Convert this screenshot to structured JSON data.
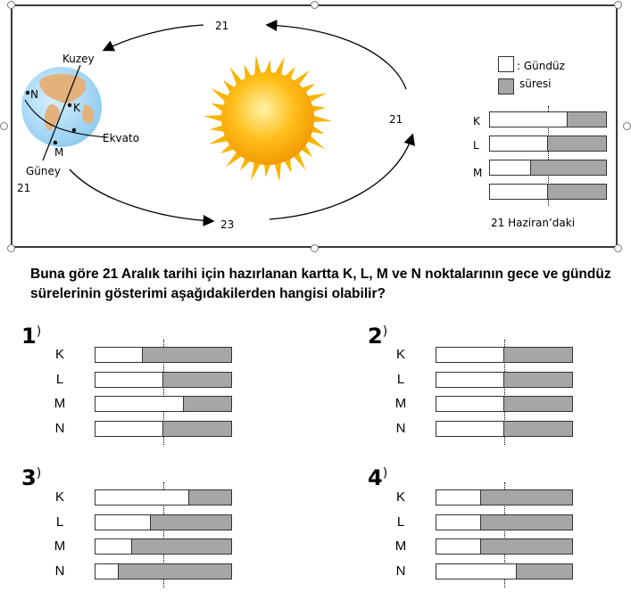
{
  "diagram": {
    "orbit_labels": {
      "top": "21",
      "right": "21",
      "bottom": "23",
      "left": "21"
    },
    "earth": {
      "north_label": "Kuzey",
      "south_label": "Güney",
      "equator_label": "Ekvato",
      "points": [
        "N",
        "K",
        "M"
      ]
    },
    "legend": {
      "day_label_line1": ": Gündüz",
      "day_label_line2": "süresi"
    },
    "reference_bars": {
      "caption": "21 Haziran’daki",
      "rows": [
        {
          "label": "K",
          "day_fraction": 0.67
        },
        {
          "label": "L",
          "day_fraction": 0.5
        },
        {
          "label": "M",
          "day_fraction": 0.35
        },
        {
          "label": "",
          "day_fraction": 0.5
        }
      ]
    },
    "colors": {
      "night": "#a6a6a6",
      "day": "#ffffff",
      "ocean": "#9fd3f0",
      "land": "#e0b080",
      "sun": "#ffb400"
    }
  },
  "question": "Buna göre 21 Aralık tarihi için hazırlanan kartta K, L, M ve N noktalarının gece ve gündüz sürelerinin gösterimi aşağıdakilerden hangisi olabilir?",
  "options": [
    {
      "number": "1",
      "paren": ")",
      "rows": [
        {
          "label": "K",
          "day_fraction": 0.35
        },
        {
          "label": "L",
          "day_fraction": 0.5
        },
        {
          "label": "M",
          "day_fraction": 0.65
        },
        {
          "label": "N",
          "day_fraction": 0.5
        }
      ]
    },
    {
      "number": "2",
      "paren": ")",
      "rows": [
        {
          "label": "K",
          "day_fraction": 0.5
        },
        {
          "label": "L",
          "day_fraction": 0.5
        },
        {
          "label": "M",
          "day_fraction": 0.5
        },
        {
          "label": "N",
          "day_fraction": 0.5
        }
      ]
    },
    {
      "number": "3",
      "paren": ")",
      "rows": [
        {
          "label": "K",
          "day_fraction": 0.69
        },
        {
          "label": "L",
          "day_fraction": 0.41
        },
        {
          "label": "M",
          "day_fraction": 0.27
        },
        {
          "label": "N",
          "day_fraction": 0.17
        }
      ]
    },
    {
      "number": "4",
      "paren": ")",
      "rows": [
        {
          "label": "K",
          "day_fraction": 0.33
        },
        {
          "label": "L",
          "day_fraction": 0.33
        },
        {
          "label": "M",
          "day_fraction": 0.33
        },
        {
          "label": "N",
          "day_fraction": 0.59
        }
      ]
    }
  ]
}
